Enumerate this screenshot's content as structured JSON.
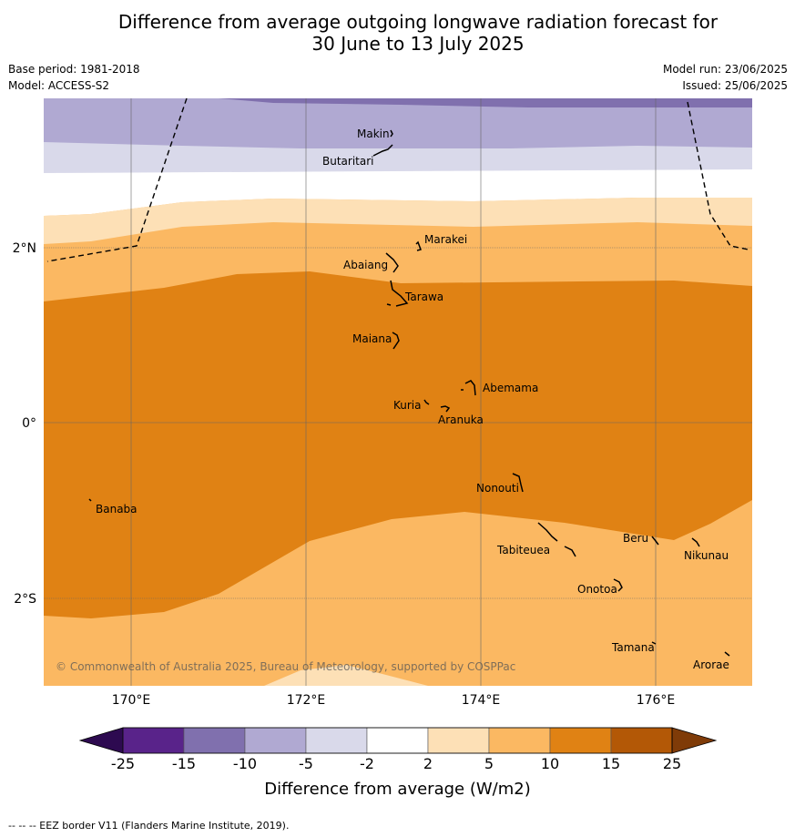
{
  "title": {
    "line1": "Difference from average outgoing longwave radiation forecast for",
    "line2": "30 June to 13 July 2025"
  },
  "meta": {
    "base_period": "Base period: 1981-2018",
    "model": "Model: ACCESS-S2",
    "model_run": "Model run: 23/06/2025",
    "issued": "Issued: 25/06/2025"
  },
  "map": {
    "lon_labels": [
      "170°E",
      "172°E",
      "174°E",
      "176°E"
    ],
    "lat_labels": [
      "2°N",
      "0°",
      "2°S"
    ],
    "islands": [
      {
        "name": "Makin"
      },
      {
        "name": "Butaritari"
      },
      {
        "name": "Marakei"
      },
      {
        "name": "Abaiang"
      },
      {
        "name": "Tarawa"
      },
      {
        "name": "Maiana"
      },
      {
        "name": "Abemama"
      },
      {
        "name": "Kuria"
      },
      {
        "name": "Aranuka"
      },
      {
        "name": "Nonouti"
      },
      {
        "name": "Banaba"
      },
      {
        "name": "Beru"
      },
      {
        "name": "Tabiteuea"
      },
      {
        "name": "Nikunau"
      },
      {
        "name": "Onotoa"
      },
      {
        "name": "Tamana"
      },
      {
        "name": "Arorae"
      }
    ],
    "copyright": "© Commonwealth of Australia 2025, Bureau of Meteorology, supported by COSPPac"
  },
  "colorbar": {
    "ticks": [
      "-25",
      "-15",
      "-10",
      "-5",
      "-2",
      "2",
      "5",
      "10",
      "15",
      "25"
    ],
    "colors": [
      "#2d0a50",
      "#59238a",
      "#8070ae",
      "#b0a9d2",
      "#d9d9ea",
      "#ffffff",
      "#fde0b6",
      "#fbb862",
      "#e08214",
      "#b35806",
      "#7f3b08"
    ],
    "label": "Difference from average (W/m2)"
  },
  "footnote": "--  --  -- EEZ border V11 (Flanders Marine Institute, 2019)."
}
